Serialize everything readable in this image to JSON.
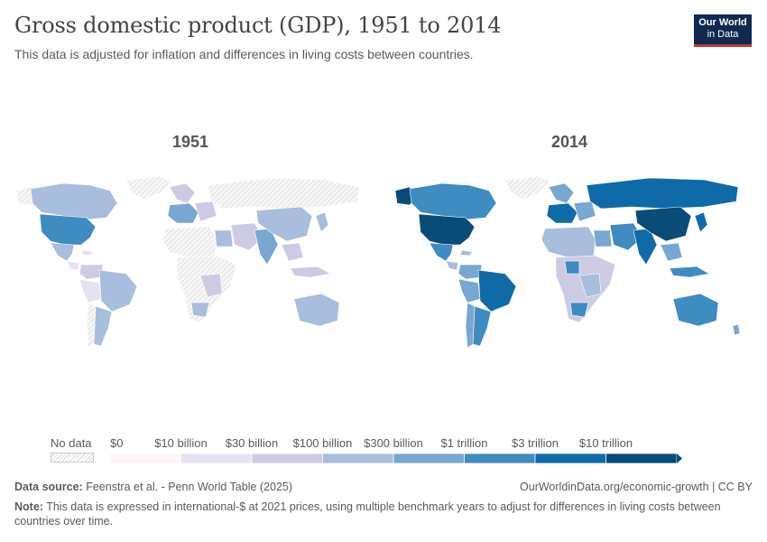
{
  "header": {
    "title": "Gross domestic product (GDP), 1951 to 2014",
    "subtitle": "This data is adjusted for inflation and differences in living costs between countries."
  },
  "logo": {
    "line1": "Our World",
    "line2": "in Data"
  },
  "maps": [
    {
      "year": "1951"
    },
    {
      "year": "2014"
    }
  ],
  "legend": {
    "no_data_label": "No data",
    "bins": [
      {
        "label": "$0",
        "color": "#fdf4fa"
      },
      {
        "label": "$10 billion",
        "color": "#e6e2f1"
      },
      {
        "label": "$30 billion",
        "color": "#cdcbe4"
      },
      {
        "label": "$100 billion",
        "color": "#a9bddd"
      },
      {
        "label": "$300 billion",
        "color": "#78a8d1"
      },
      {
        "label": "$1 trillion",
        "color": "#3f8cc1"
      },
      {
        "label": "$3 trillion",
        "color": "#0f6ba8"
      },
      {
        "label": "$10 trillion",
        "color": "#084c77"
      }
    ]
  },
  "colors": {
    "no_data": "#e9e9e9",
    "bin0": "#fdf4fa",
    "bin1": "#e6e2f1",
    "bin2": "#cdcbe4",
    "bin3": "#a9bddd",
    "bin4": "#78a8d1",
    "bin5": "#3f8cc1",
    "bin6": "#0f6ba8",
    "bin7": "#084c77"
  },
  "footer": {
    "source_label": "Data source:",
    "source_text": "Feenstra et al. - Penn World Table (2025)",
    "url_text": "OurWorldinData.org/economic-growth | CC BY",
    "note_label": "Note:",
    "note_text": "This data is expressed in international-$ at 2021 prices, using multiple benchmark years to adjust for differences in living costs between countries over time."
  }
}
